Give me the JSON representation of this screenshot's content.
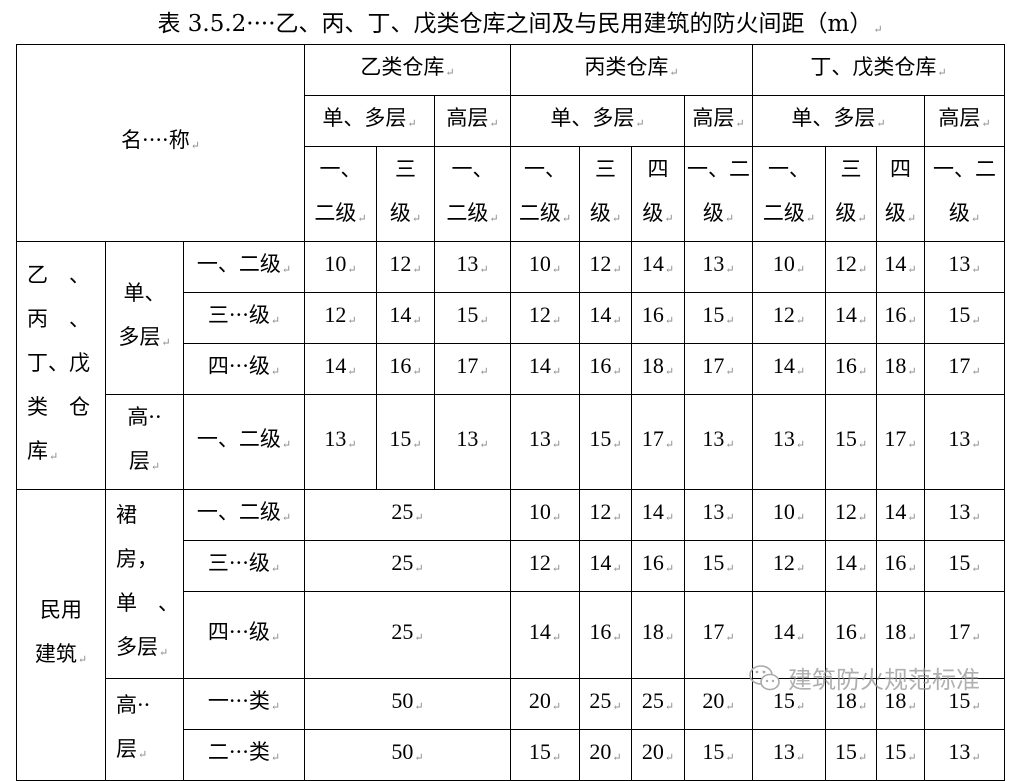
{
  "title": "表 3.5.2····乙、丙、丁、戊类仓库之间及与民用建筑的防火间距（m）",
  "watermark": {
    "text": "建筑防火规范标准",
    "icon": "wechat-icon"
  },
  "rows": [
    [
      {
        "t": "名····称",
        "rs": 3,
        "cs": 3
      },
      {
        "t": "乙类仓库",
        "cs": 3
      },
      {
        "t": "丙类仓库",
        "cs": 4
      },
      {
        "t": "丁、戊类仓库",
        "cs": 4
      }
    ],
    [
      {
        "t": "单、多层",
        "cs": 2
      },
      {
        "t": "高层"
      },
      {
        "t": "单、多层",
        "cs": 3
      },
      {
        "t": "高层"
      },
      {
        "t": "单、多层",
        "cs": 3
      },
      {
        "t": "高层"
      }
    ],
    [
      {
        "t": "一、\n二级"
      },
      {
        "t": "三\n级"
      },
      {
        "t": "一、\n二级"
      },
      {
        "t": "一、\n二级"
      },
      {
        "t": "三\n级"
      },
      {
        "t": "四\n级"
      },
      {
        "t": "一、二\n级"
      },
      {
        "t": "一、\n二级"
      },
      {
        "t": "三\n级"
      },
      {
        "t": "四\n级"
      },
      {
        "t": "一、二\n级"
      }
    ],
    [
      {
        "t": "乙　、\n丙　、\n丁、戊\n类　仓\n库",
        "rs": 4,
        "left": true
      },
      {
        "t": "单、\n多层",
        "rs": 3
      },
      {
        "t": "一、二级"
      },
      {
        "t": "10"
      },
      {
        "t": "12"
      },
      {
        "t": "13"
      },
      {
        "t": "10"
      },
      {
        "t": "12"
      },
      {
        "t": "14"
      },
      {
        "t": "13"
      },
      {
        "t": "10"
      },
      {
        "t": "12"
      },
      {
        "t": "14"
      },
      {
        "t": "13"
      }
    ],
    [
      {
        "t": "三···级"
      },
      {
        "t": "12"
      },
      {
        "t": "14"
      },
      {
        "t": "15"
      },
      {
        "t": "12"
      },
      {
        "t": "14"
      },
      {
        "t": "16"
      },
      {
        "t": "15"
      },
      {
        "t": "12"
      },
      {
        "t": "14"
      },
      {
        "t": "16"
      },
      {
        "t": "15"
      }
    ],
    [
      {
        "t": "四···级"
      },
      {
        "t": "14"
      },
      {
        "t": "16"
      },
      {
        "t": "17"
      },
      {
        "t": "14"
      },
      {
        "t": "16"
      },
      {
        "t": "18"
      },
      {
        "t": "17"
      },
      {
        "t": "14"
      },
      {
        "t": "16"
      },
      {
        "t": "18"
      },
      {
        "t": "17"
      }
    ],
    [
      {
        "t": "高··\n层"
      },
      {
        "t": "一、二级"
      },
      {
        "t": "13"
      },
      {
        "t": "15"
      },
      {
        "t": "13"
      },
      {
        "t": "13"
      },
      {
        "t": "15"
      },
      {
        "t": "17"
      },
      {
        "t": "13"
      },
      {
        "t": "13"
      },
      {
        "t": "15"
      },
      {
        "t": "17"
      },
      {
        "t": "13"
      }
    ],
    [
      {
        "t": "民用\n建筑",
        "rs": 5
      },
      {
        "t": "裙\n房，\n单　、\n多层",
        "rs": 3,
        "left": true
      },
      {
        "t": "一、二级"
      },
      {
        "t": "25",
        "cs": 3
      },
      {
        "t": "10"
      },
      {
        "t": "12"
      },
      {
        "t": "14"
      },
      {
        "t": "13"
      },
      {
        "t": "10"
      },
      {
        "t": "12"
      },
      {
        "t": "14"
      },
      {
        "t": "13"
      }
    ],
    [
      {
        "t": "三···级"
      },
      {
        "t": "25",
        "cs": 3
      },
      {
        "t": "12"
      },
      {
        "t": "14"
      },
      {
        "t": "16"
      },
      {
        "t": "15"
      },
      {
        "t": "12"
      },
      {
        "t": "14"
      },
      {
        "t": "16"
      },
      {
        "t": "15"
      }
    ],
    [
      {
        "t": "四···级"
      },
      {
        "t": "25",
        "cs": 3
      },
      {
        "t": "14"
      },
      {
        "t": "16"
      },
      {
        "t": "18"
      },
      {
        "t": "17"
      },
      {
        "t": "14"
      },
      {
        "t": "16"
      },
      {
        "t": "18"
      },
      {
        "t": "17"
      }
    ],
    [
      {
        "t": "高··\n层",
        "rs": 2,
        "left": true
      },
      {
        "t": "一···类"
      },
      {
        "t": "50",
        "cs": 3
      },
      {
        "t": "20"
      },
      {
        "t": "25"
      },
      {
        "t": "25"
      },
      {
        "t": "20"
      },
      {
        "t": "15"
      },
      {
        "t": "18"
      },
      {
        "t": "18"
      },
      {
        "t": "15"
      }
    ],
    [
      {
        "t": "二···类"
      },
      {
        "t": "50",
        "cs": 3
      },
      {
        "t": "15"
      },
      {
        "t": "20"
      },
      {
        "t": "20"
      },
      {
        "t": "15"
      },
      {
        "t": "13"
      },
      {
        "t": "15"
      },
      {
        "t": "15"
      },
      {
        "t": "13"
      }
    ]
  ]
}
